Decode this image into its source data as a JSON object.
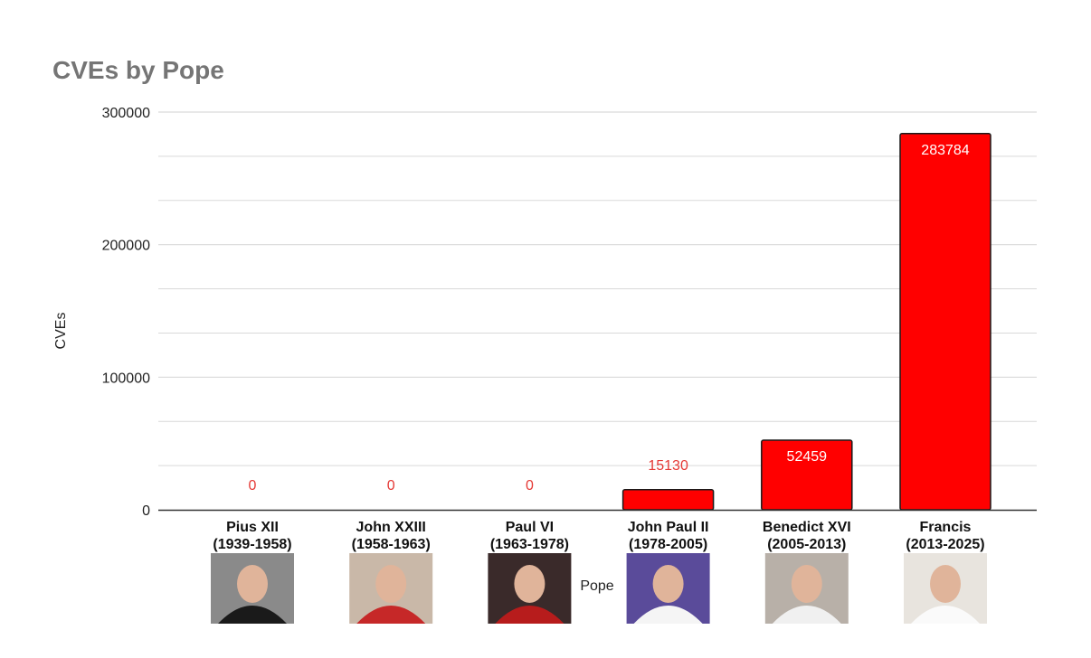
{
  "chart_data": {
    "type": "bar",
    "title": "CVEs by Pope",
    "xlabel": "Pope",
    "ylabel": "CVEs",
    "ylim": [
      0,
      300000
    ],
    "yticks": [
      "0",
      "100000",
      "200000",
      "300000"
    ],
    "grid": true,
    "categories": [
      "Pius XII (1939-1958)",
      "John XXIII (1958-1963)",
      "Paul VI (1963-1978)",
      "John Paul II (1978-2005)",
      "Benedict XVI (2005-2013)",
      "Francis (2013-2025)"
    ],
    "category_names": [
      "Pius XII",
      "John XXIII",
      "Paul VI",
      "John Paul II",
      "Benedict XVI",
      "Francis"
    ],
    "category_years": [
      "(1939-1958)",
      "(1958-1963)",
      "(1963-1978)",
      "(1978-2005)",
      "(2005-2013)",
      "(2013-2025)"
    ],
    "values": [
      0,
      0,
      0,
      15130,
      52459,
      283784
    ],
    "data_labels": [
      "0",
      "0",
      "0",
      "15130",
      "52459",
      "283784"
    ],
    "portraits": [
      "pope-portrait-photo",
      "pope-portrait-photo",
      "pope-portrait-photo",
      "pope-portrait-photo",
      "pope-portrait-photo",
      "pope-portrait-photo"
    ],
    "colors": {
      "bar": "#ff0000",
      "bar_stroke": "#1a1a1a",
      "label_outside": "#e53935",
      "label_inside": "#ffffff",
      "grid": "#d9d9d9",
      "title": "#757575"
    }
  }
}
